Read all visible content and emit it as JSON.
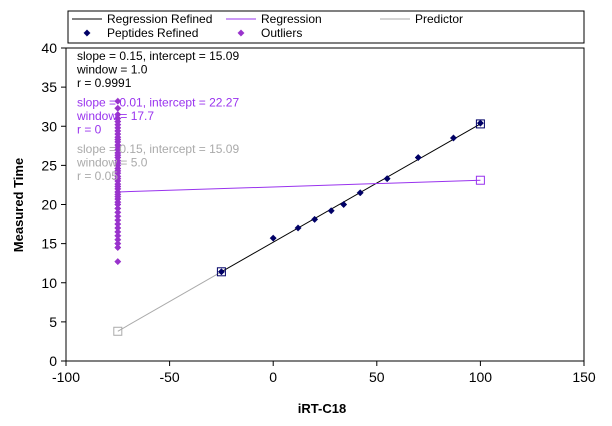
{
  "chart_data": {
    "type": "scatter",
    "xlabel": "iRT-C18",
    "ylabel": "Measured Time",
    "xlim": [
      -100,
      150
    ],
    "ylim": [
      0,
      40
    ],
    "xticks": [
      -100,
      -50,
      0,
      50,
      100,
      150
    ],
    "yticks": [
      0,
      5,
      10,
      15,
      20,
      25,
      30,
      35,
      40
    ],
    "grid": false,
    "legend_position": "top",
    "legend": [
      {
        "label": "Regression Refined",
        "kind": "line",
        "color": "#000000"
      },
      {
        "label": "Regression",
        "kind": "line",
        "color": "#9933ee"
      },
      {
        "label": "Predictor",
        "kind": "line",
        "color": "#aaaaaa"
      },
      {
        "label": "Peptides Refined",
        "kind": "marker",
        "color": "#000066"
      },
      {
        "label": "Outliers",
        "kind": "marker",
        "color": "#9933cc"
      }
    ],
    "series": [
      {
        "name": "Regression Refined",
        "type": "line",
        "color": "#000000",
        "x": [
          -25,
          100
        ],
        "y": [
          11.4,
          30.3
        ]
      },
      {
        "name": "Regression",
        "type": "line",
        "color": "#9933ee",
        "x": [
          -75,
          100
        ],
        "y": [
          21.6,
          23.1
        ]
      },
      {
        "name": "Predictor",
        "type": "line",
        "color": "#aaaaaa",
        "x": [
          -75,
          -25
        ],
        "y": [
          3.8,
          11.4
        ]
      },
      {
        "name": "Peptides Refined",
        "type": "scatter",
        "marker": "diamond",
        "color": "#000066",
        "x": [
          -25,
          0,
          12,
          20,
          28,
          34,
          42,
          55,
          70,
          87,
          100
        ],
        "y": [
          11.4,
          15.7,
          17.0,
          18.1,
          19.2,
          20.0,
          21.5,
          23.3,
          26.0,
          28.5,
          30.4
        ]
      },
      {
        "name": "Outliers",
        "type": "scatter",
        "marker": "diamond",
        "color": "#9933cc",
        "x": [
          -75,
          -75,
          -75,
          -75,
          -75,
          -75,
          -75,
          -75,
          -75,
          -75,
          -75,
          -75,
          -75,
          -75,
          -75,
          -75,
          -75,
          -75,
          -75,
          -75,
          -75,
          -75,
          -75,
          -75,
          -75,
          -75,
          -75,
          -75,
          -75,
          -75,
          -75,
          -75,
          -75,
          -75,
          -75,
          -75,
          -75,
          -75,
          -75,
          -75,
          -75,
          -75,
          -75,
          -75,
          -75,
          -75,
          -75,
          -75
        ],
        "y": [
          12.7,
          14.5,
          15.0,
          15.5,
          16.0,
          16.5,
          17.0,
          17.5,
          18.0,
          18.5,
          19.0,
          19.5,
          20.0,
          20.3,
          20.7,
          21.0,
          21.3,
          21.6,
          22.0,
          22.3,
          22.6,
          23.0,
          23.3,
          23.6,
          24.0,
          24.3,
          24.6,
          25.0,
          25.3,
          25.6,
          26.0,
          26.3,
          26.6,
          27.0,
          27.3,
          27.6,
          28.0,
          28.3,
          28.6,
          29.0,
          29.4,
          29.8,
          30.2,
          30.6,
          31.0,
          31.5,
          32.3,
          33.2
        ]
      }
    ],
    "end_markers": [
      {
        "series": "Regression Refined",
        "x": -25,
        "y": 11.4,
        "color": "#000066"
      },
      {
        "series": "Regression Refined",
        "x": 100,
        "y": 30.3,
        "color": "#000066"
      },
      {
        "series": "Regression",
        "x": 100,
        "y": 23.1,
        "color": "#9933ee"
      },
      {
        "series": "Predictor",
        "x": -75,
        "y": 3.8,
        "color": "#aaaaaa"
      }
    ],
    "annotations": [
      {
        "lines": [
          "slope = 0.15, intercept = 15.09",
          "window = 1.0",
          "r = 0.9991"
        ],
        "color": "#000000"
      },
      {
        "lines": [
          "slope = 0.01, intercept = 22.27",
          "window = 17.7",
          "r = 0"
        ],
        "color": "#9933ee"
      },
      {
        "lines": [
          "slope = 0.15, intercept = 15.09",
          "window = 5.0",
          "r = 0.05"
        ],
        "color": "#aaaaaa"
      }
    ]
  }
}
